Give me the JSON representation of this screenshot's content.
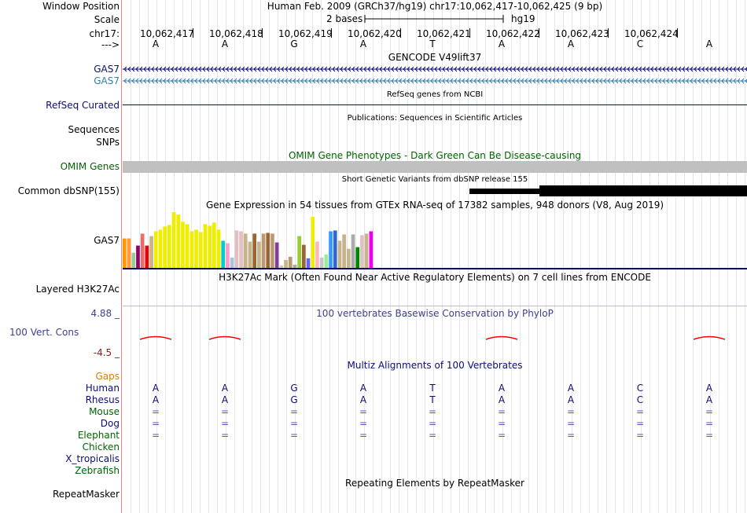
{
  "header": {
    "window_position_label": "Window Position",
    "window_position_value": "Human Feb. 2009 (GRCh37/hg19)   chr17:10,062,417-10,062,425 (9 bp)",
    "scale_label": "Scale",
    "scale_bar_text": "2 bases",
    "scale_assembly": "hg19",
    "chrom_label": "chr17:",
    "strand_label": "--->"
  },
  "ruler": {
    "positions": [
      "10,062,417",
      "10,062,418",
      "10,062,419",
      "10,062,420",
      "10,062,421",
      "10,062,422",
      "10,062,423",
      "10,062,424"
    ]
  },
  "bases": [
    "A",
    "A",
    "G",
    "A",
    "T",
    "A",
    "A",
    "C",
    "A"
  ],
  "colors": {
    "gencode": "#0c0c78",
    "gencode_alt": "#2f7fb1",
    "refseq": "#0c0c78",
    "omim": "#006400",
    "conservation": "#3f3f8f",
    "conservation_low": "#8b1a1a",
    "gaps": "#e07b00",
    "divider": "#e48a8a",
    "h3k27ac_line": "#8fd0e0"
  },
  "tracks": {
    "gencode": {
      "title": "GENCODE V49lift37",
      "rows": [
        "GAS7",
        "GAS7"
      ]
    },
    "refseq": {
      "title": "RefSeq genes from NCBI",
      "label": "RefSeq Curated"
    },
    "publications": {
      "title": "Publications: Sequences in Scientific Articles",
      "label": "Sequences"
    },
    "snps_label": "SNPs",
    "omim": {
      "title": "OMIM Gene Phenotypes - Dark Green Can Be Disease-causing",
      "label": "OMIM Genes"
    },
    "dbsnp": {
      "title": "Short Genetic Variants from dbSNP release 155",
      "label": "Common dbSNP(155)"
    },
    "gtex": {
      "title": "Gene Expression in 54 tissues from GTEx RNA-seq of 17382 samples, 948 donors (V8, Aug 2019)",
      "label": "GAS7",
      "bars": [
        {
          "value": 38,
          "color": "#ff9900"
        },
        {
          "value": 38,
          "color": "#ff9a40"
        },
        {
          "value": 20,
          "color": "#99cc99"
        },
        {
          "value": 29,
          "color": "#990066"
        },
        {
          "value": 44,
          "color": "#ee6a6a"
        },
        {
          "value": 29,
          "color": "#ee0000"
        },
        {
          "value": 41,
          "color": "#c8b48c"
        },
        {
          "value": 47,
          "color": "#eeee00"
        },
        {
          "value": 49,
          "color": "#eeee00"
        },
        {
          "value": 53,
          "color": "#eeee00"
        },
        {
          "value": 55,
          "color": "#eeee00"
        },
        {
          "value": 71,
          "color": "#eeee00"
        },
        {
          "value": 68,
          "color": "#eeee00"
        },
        {
          "value": 59,
          "color": "#eeee00"
        },
        {
          "value": 56,
          "color": "#eeee00"
        },
        {
          "value": 47,
          "color": "#eeee00"
        },
        {
          "value": 49,
          "color": "#eeee00"
        },
        {
          "value": 46,
          "color": "#eeee00"
        },
        {
          "value": 56,
          "color": "#eeee00"
        },
        {
          "value": 54,
          "color": "#eeee00"
        },
        {
          "value": 58,
          "color": "#eeee00"
        },
        {
          "value": 49,
          "color": "#eeee00"
        },
        {
          "value": 35,
          "color": "#00cccc"
        },
        {
          "value": 32,
          "color": "#ff99cc"
        },
        {
          "value": 14,
          "color": "#a9c4dd"
        },
        {
          "value": 48,
          "color": "#e0c0c0"
        },
        {
          "value": 47,
          "color": "#e0c0c0"
        },
        {
          "value": 44,
          "color": "#c8b48c"
        },
        {
          "value": 34,
          "color": "#c8b48c"
        },
        {
          "value": 44,
          "color": "#996633"
        },
        {
          "value": 34,
          "color": "#c8b48c"
        },
        {
          "value": 44,
          "color": "#bb9977"
        },
        {
          "value": 45,
          "color": "#996633"
        },
        {
          "value": 44,
          "color": "#bb9977"
        },
        {
          "value": 33,
          "color": "#7f3f98"
        },
        {
          "value": 4,
          "color": "#ccccb0"
        },
        {
          "value": 11,
          "color": "#c8b48c"
        },
        {
          "value": 15,
          "color": "#bb9977"
        },
        {
          "value": 5,
          "color": "#aaaaaa"
        },
        {
          "value": 41,
          "color": "#99cc33"
        },
        {
          "value": 30,
          "color": "#996633"
        },
        {
          "value": 13,
          "color": "#6666ff"
        },
        {
          "value": 65,
          "color": "#eeee00"
        },
        {
          "value": 34,
          "color": "#ffb6c1"
        },
        {
          "value": 14,
          "color": "#c8c8c8"
        },
        {
          "value": 18,
          "color": "#99ee99"
        },
        {
          "value": 47,
          "color": "#3399ff"
        },
        {
          "value": 48,
          "color": "#3366cc"
        },
        {
          "value": 35,
          "color": "#c8b48c"
        },
        {
          "value": 43,
          "color": "#c8b48c"
        },
        {
          "value": 25,
          "color": "#c8b48c"
        },
        {
          "value": 43,
          "color": "#aaaaaa"
        },
        {
          "value": 27,
          "color": "#008800"
        },
        {
          "value": 42,
          "color": "#e0c0c0"
        },
        {
          "value": 44,
          "color": "#c8b48c"
        },
        {
          "value": 47,
          "color": "#ee00ee"
        }
      ]
    },
    "h3k27ac": {
      "title": "H3K27Ac Mark (Often Found Near Active Regulatory Elements) on 7 cell lines from ENCODE",
      "label": "Layered H3K27Ac"
    },
    "conservation": {
      "title": "100 vertebrates Basewise Conservation by PhyloP",
      "label": "100 Vert. Cons",
      "max_label": "4.88 _",
      "min_label": "-4.5 _",
      "peak_bases": [
        0,
        1,
        5,
        8
      ]
    },
    "multiz": {
      "title": "Multiz Alignments of 100 Vertebrates",
      "gaps_label": "Gaps",
      "species": [
        {
          "name": "Human",
          "row": [
            "A",
            "A",
            "G",
            "A",
            "T",
            "A",
            "A",
            "C",
            "A"
          ]
        },
        {
          "name": "Rhesus",
          "row": [
            "A",
            "A",
            "G",
            "A",
            "T",
            "A",
            "A",
            "C",
            "A"
          ]
        },
        {
          "name": "Mouse",
          "row": [
            "=",
            "=",
            "=",
            "=",
            "=",
            "=",
            "=",
            "=",
            "="
          ]
        },
        {
          "name": "Dog",
          "row": [
            "=",
            "=",
            "=",
            "=",
            "=",
            "=",
            "=",
            "=",
            "="
          ]
        },
        {
          "name": "Elephant",
          "row": [
            "=",
            "=",
            "=",
            "=",
            "=",
            "=",
            "=",
            "=",
            "="
          ]
        },
        {
          "name": "Chicken",
          "row": []
        },
        {
          "name": "X_tropicalis",
          "row": []
        },
        {
          "name": "Zebrafish",
          "row": []
        }
      ]
    },
    "repeatmasker": {
      "title": "Repeating Elements by RepeatMasker",
      "label": "RepeatMasker"
    }
  }
}
